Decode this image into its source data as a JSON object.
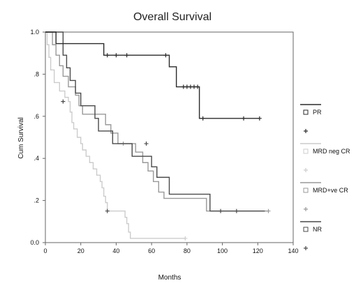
{
  "chart_data": {
    "type": "line",
    "title": "Overall Survival",
    "xlabel": "Months",
    "ylabel": "Cum Survival",
    "xlim": [
      0,
      140
    ],
    "ylim": [
      0,
      1
    ],
    "x_ticks": [
      0,
      20,
      40,
      60,
      80,
      100,
      120,
      140
    ],
    "x_tick_labels": [
      "0",
      "20",
      "40",
      "60",
      "80",
      "100",
      "120",
      "140"
    ],
    "y_ticks": [
      0,
      0.2,
      0.4,
      0.6,
      0.8,
      1.0
    ],
    "y_tick_labels": [
      "0.0",
      ".2",
      ".4",
      ".6",
      ".8",
      "1.0"
    ],
    "grid": false,
    "legend_position": "right",
    "series": [
      {
        "name": "PR",
        "color": "#2a2a2a",
        "steps": [
          [
            0,
            1.0
          ],
          [
            6,
            0.945
          ],
          [
            33,
            0.89
          ],
          [
            70,
            0.835
          ],
          [
            74,
            0.74
          ],
          [
            87,
            0.59
          ],
          [
            121,
            0.59
          ]
        ],
        "censored": [
          [
            35,
            0.89
          ],
          [
            40,
            0.89
          ],
          [
            46,
            0.89
          ],
          [
            68,
            0.89
          ],
          [
            78,
            0.74
          ],
          [
            80,
            0.74
          ],
          [
            82,
            0.74
          ],
          [
            84,
            0.74
          ],
          [
            86,
            0.74
          ],
          [
            89,
            0.59
          ],
          [
            112,
            0.59
          ],
          [
            121,
            0.59
          ]
        ]
      },
      {
        "name": "MRD neg CR",
        "color": "#cccccc",
        "steps": [
          [
            0,
            1.0
          ],
          [
            1,
            0.94
          ],
          [
            2,
            0.88
          ],
          [
            3,
            0.82
          ],
          [
            5,
            0.76
          ],
          [
            8,
            0.72
          ],
          [
            11,
            0.69
          ],
          [
            13,
            0.67
          ],
          [
            14,
            0.62
          ],
          [
            15,
            0.57
          ],
          [
            16,
            0.54
          ],
          [
            18,
            0.5
          ],
          [
            20,
            0.47
          ],
          [
            21,
            0.44
          ],
          [
            23,
            0.41
          ],
          [
            25,
            0.38
          ],
          [
            27,
            0.35
          ],
          [
            29,
            0.32
          ],
          [
            31,
            0.29
          ],
          [
            32,
            0.26
          ],
          [
            33,
            0.22
          ],
          [
            34,
            0.19
          ],
          [
            35,
            0.15
          ],
          [
            45,
            0.12
          ],
          [
            46,
            0.09
          ],
          [
            47,
            0.05
          ],
          [
            48,
            0.02
          ],
          [
            79,
            0.02
          ]
        ],
        "censored": [
          [
            79,
            0.02
          ]
        ]
      },
      {
        "name": "MRD+ve CR",
        "color": "#999999",
        "steps": [
          [
            0,
            1.0
          ],
          [
            4,
            0.94
          ],
          [
            6,
            0.89
          ],
          [
            8,
            0.84
          ],
          [
            10,
            0.79
          ],
          [
            13,
            0.74
          ],
          [
            17,
            0.7
          ],
          [
            19,
            0.65
          ],
          [
            21,
            0.61
          ],
          [
            34,
            0.56
          ],
          [
            37,
            0.52
          ],
          [
            41,
            0.47
          ],
          [
            51,
            0.43
          ],
          [
            55,
            0.38
          ],
          [
            58,
            0.34
          ],
          [
            61,
            0.29
          ],
          [
            64,
            0.24
          ],
          [
            67,
            0.21
          ],
          [
            91,
            0.15
          ],
          [
            126,
            0.15
          ]
        ],
        "censored": [
          [
            44,
            0.47
          ],
          [
            126,
            0.15
          ]
        ]
      },
      {
        "name": "NR",
        "color": "#4a4a4a",
        "steps": [
          [
            0,
            1.0
          ],
          [
            10,
            0.89
          ],
          [
            12,
            0.83
          ],
          [
            14,
            0.77
          ],
          [
            17,
            0.71
          ],
          [
            20,
            0.65
          ],
          [
            28,
            0.59
          ],
          [
            30,
            0.53
          ],
          [
            38,
            0.47
          ],
          [
            49,
            0.41
          ],
          [
            60,
            0.36
          ],
          [
            63,
            0.31
          ],
          [
            70,
            0.23
          ],
          [
            93,
            0.15
          ],
          [
            124,
            0.15
          ]
        ],
        "censored": [
          [
            10,
            0.67
          ],
          [
            35,
            0.15
          ],
          [
            57,
            0.47
          ],
          [
            99,
            0.15
          ],
          [
            108,
            0.15
          ]
        ]
      }
    ]
  }
}
